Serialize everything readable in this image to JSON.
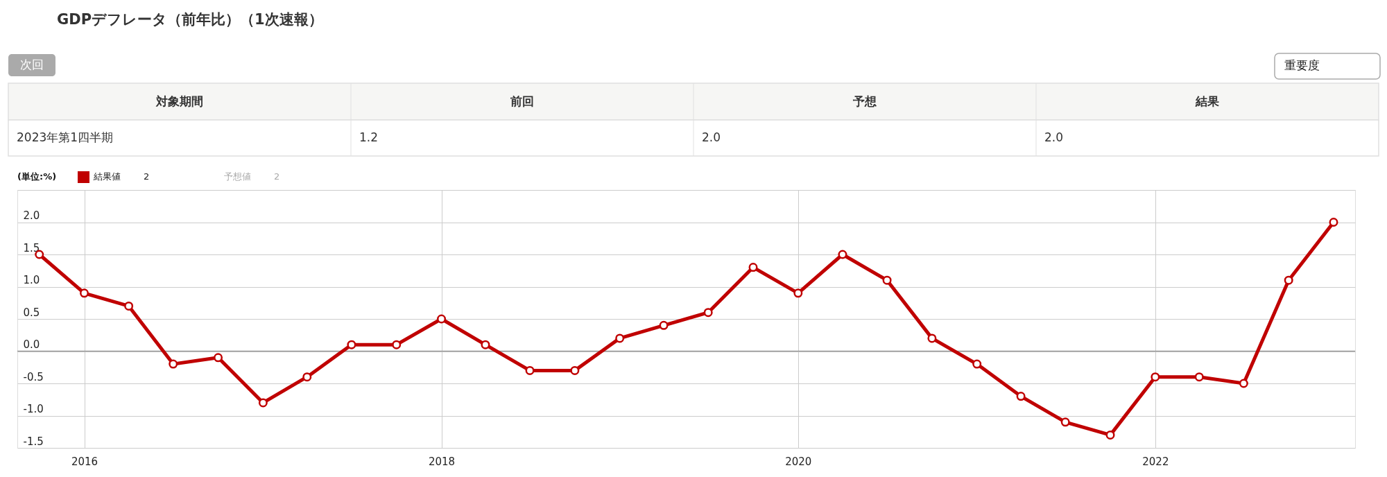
{
  "chart_data": {
    "type": "line",
    "title": "GDPデフレータ（前年比）（1次速報）",
    "x": [
      "2015-10",
      "2016-01",
      "2016-04",
      "2016-07",
      "2016-10",
      "2017-01",
      "2017-04",
      "2017-07",
      "2017-10",
      "2018-01",
      "2018-04",
      "2018-07",
      "2018-10",
      "2019-01",
      "2019-04",
      "2019-07",
      "2019-10",
      "2020-01",
      "2020-04",
      "2020-07",
      "2020-10",
      "2021-01",
      "2021-04",
      "2021-07",
      "2021-10",
      "2022-01",
      "2022-04",
      "2022-07",
      "2022-10",
      "2023-01"
    ],
    "series": [
      {
        "name": "結果値",
        "color": "#c00000",
        "values": [
          1.5,
          0.9,
          0.7,
          -0.2,
          -0.1,
          -0.8,
          -0.4,
          0.1,
          0.1,
          0.5,
          0.1,
          -0.3,
          -0.3,
          0.2,
          0.4,
          0.6,
          1.3,
          0.9,
          1.5,
          1.1,
          0.2,
          -0.2,
          -0.7,
          -1.1,
          -1.3,
          -0.4,
          -0.4,
          -0.5,
          1.1,
          2.0
        ]
      }
    ],
    "xlim": [
      "2015-08-17",
      "2023-02-14"
    ],
    "xticks": [
      "2016",
      "2018",
      "2020",
      "2022"
    ],
    "ylim": [
      -1.5,
      2.5
    ],
    "yticks": [
      {
        "value": -1.5,
        "label": "-1.5"
      },
      {
        "value": -1.0,
        "label": "-1.0"
      },
      {
        "value": -0.5,
        "label": "-0.5"
      },
      {
        "value": 0.0,
        "label": "0.0"
      },
      {
        "value": 0.5,
        "label": "0.5"
      },
      {
        "value": 1.0,
        "label": "1.0"
      },
      {
        "value": 1.5,
        "label": "1.5"
      },
      {
        "value": 2.0,
        "label": "2.0"
      },
      {
        "value": 2.5,
        "label": null
      }
    ],
    "ref_lines": [
      {
        "axis": "y",
        "value": 0,
        "color": "#999999"
      }
    ],
    "annotations": [
      "次回",
      "重要度",
      "対象期間",
      "前回",
      "予想",
      "結果",
      "2023年第1四半期",
      "1.2",
      "2.0",
      "2.0",
      "(単位:%)",
      "2",
      "予想値",
      "2"
    ],
    "legend": "top left",
    "grid": true,
    "marker": "circle",
    "line_style": "solid"
  }
}
